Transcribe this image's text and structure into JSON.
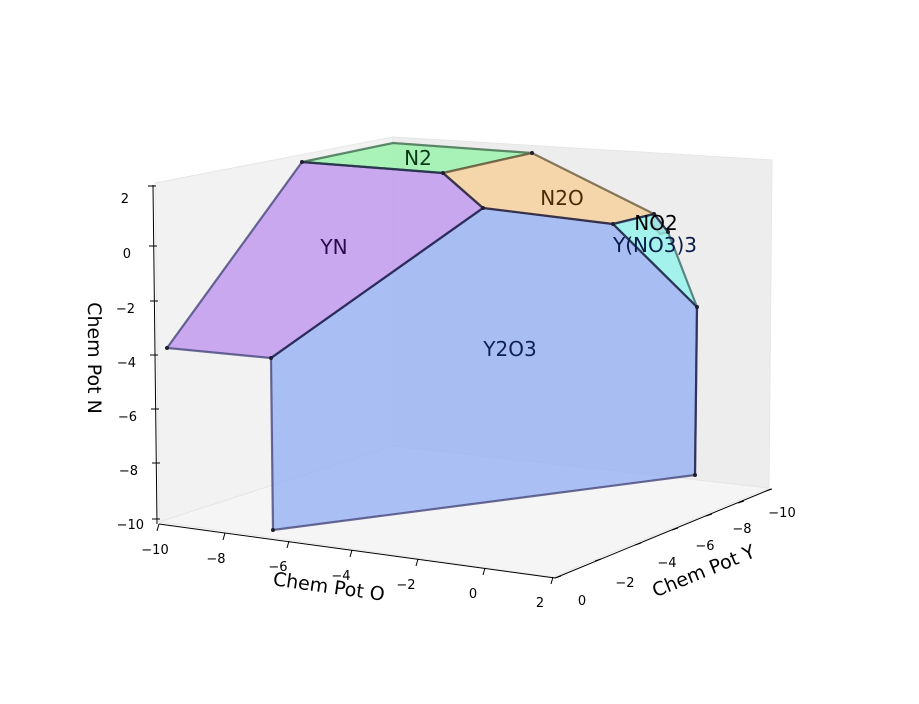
{
  "chart_data": {
    "type": "3d-polygon",
    "title": "",
    "xlabel": "Chem Pot O",
    "ylabel": "Chem Pot Y",
    "zlabel": "Chem Pot N",
    "x_ticks": [
      "−10",
      "−8",
      "−6",
      "−4",
      "−2",
      "0",
      "2"
    ],
    "y_ticks": [
      "0",
      "−2",
      "−4",
      "−6",
      "−8",
      "−10"
    ],
    "z_ticks": [
      "2",
      "0",
      "−2",
      "−4",
      "−6",
      "−8",
      "−10"
    ],
    "regions": [
      {
        "name": "Y2O3",
        "color": "#8aaaf5"
      },
      {
        "name": "YN",
        "color": "#b889f0"
      },
      {
        "name": "N2",
        "color": "#90f3a6"
      },
      {
        "name": "N2O",
        "color": "#f7cd93"
      },
      {
        "name": "NO2",
        "color": "#f39fbf"
      },
      {
        "name": "Y(NO3)3",
        "color": "#8af3ea"
      }
    ]
  }
}
